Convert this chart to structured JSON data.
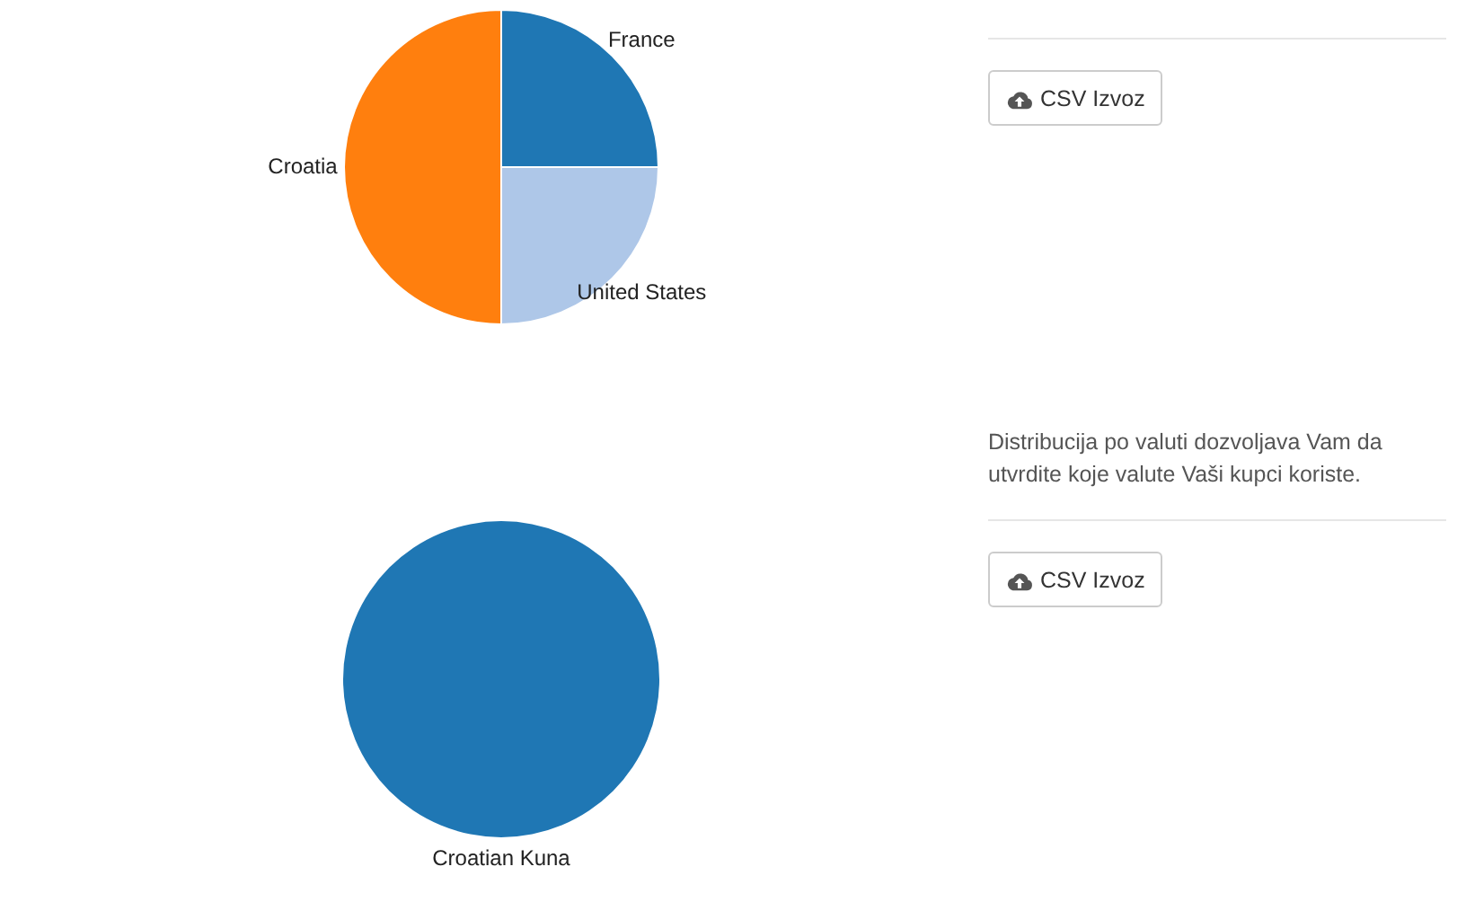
{
  "chart_data": [
    {
      "type": "pie",
      "categories": [
        "France",
        "United States",
        "Croatia"
      ],
      "values": [
        25,
        25,
        50
      ],
      "colors": [
        "#1f77b4",
        "#aec7e8",
        "#ff7f0e"
      ],
      "annotations": [
        "CSV Izvoz"
      ]
    },
    {
      "type": "pie",
      "categories": [
        "Croatian Kuna"
      ],
      "values": [
        100
      ],
      "colors": [
        "#1f77b4"
      ],
      "annotations": [
        "Distribucija po valuti dozvoljava Vam da utvrdite koje valute Vaši kupci koriste.",
        "CSV Izvoz"
      ]
    }
  ]
}
